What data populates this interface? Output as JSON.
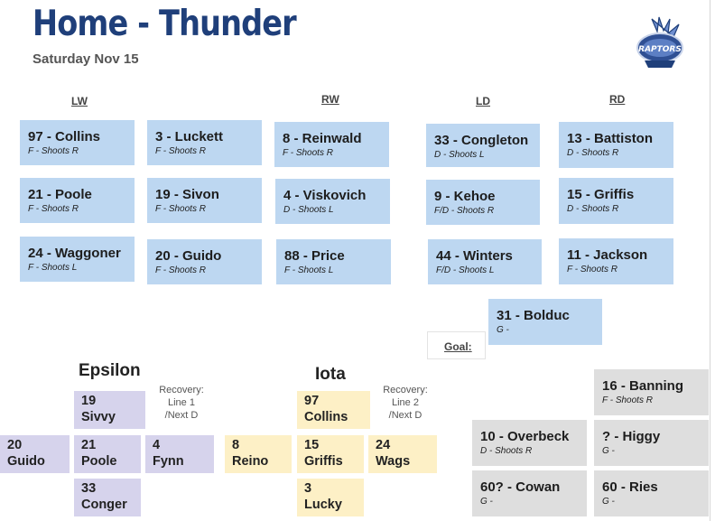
{
  "header": {
    "title": "Home - Thunder",
    "date": "Saturday Nov 15",
    "logo_text": "RAPTORS"
  },
  "columns": {
    "lw": "LW",
    "rw": "RW",
    "ld": "LD",
    "rd": "RD"
  },
  "lines": {
    "lw": [
      {
        "name": "97 - Collins",
        "detail": "F -  Shoots R"
      },
      {
        "name": "21 - Poole",
        "detail": "F - Shoots R"
      },
      {
        "name": "24 - Waggoner",
        "detail": "F - Shoots L"
      }
    ],
    "c": [
      {
        "name": "3 - Luckett",
        "detail": "F -  Shoots R"
      },
      {
        "name": "19 - Sivon",
        "detail": "F -  Shoots R"
      },
      {
        "name": "20 - Guido",
        "detail": "F -  Shoots R"
      }
    ],
    "rw": [
      {
        "name": "8 - Reinwald",
        "detail": "F -  Shoots R"
      },
      {
        "name": "4 - Viskovich",
        "detail": "D -  Shoots L"
      },
      {
        "name": "88 - Price",
        "detail": "F - Shoots L"
      }
    ],
    "ld": [
      {
        "name": "33 - Congleton",
        "detail": "D -  Shoots L"
      },
      {
        "name": "9 - Kehoe",
        "detail": "F/D -  Shoots R"
      },
      {
        "name": "44 - Winters",
        "detail": "F/D -  Shoots L"
      }
    ],
    "rd": [
      {
        "name": "13 - Battiston",
        "detail": "D -  Shoots R"
      },
      {
        "name": "15 - Griffis",
        "detail": "D -  Shoots R"
      },
      {
        "name": "11 - Jackson",
        "detail": "F -  Shoots R"
      }
    ]
  },
  "goal": {
    "label": "Goal:",
    "starter": {
      "name": "31 - Bolduc",
      "detail": "G -"
    }
  },
  "epsilon": {
    "title": "Epsilon",
    "recovery": [
      "Recovery:",
      "Line 1",
      "/Next D"
    ],
    "players": [
      [
        "19",
        "Sivvy"
      ],
      [
        "20",
        "Guido"
      ],
      [
        "21",
        "Poole"
      ],
      [
        "4",
        "Fynn"
      ],
      [
        "33",
        "Conger"
      ]
    ]
  },
  "iota": {
    "title": "Iota",
    "recovery": [
      "Recovery:",
      "Line 2",
      "/Next D"
    ],
    "players": [
      [
        "97",
        "Collins"
      ],
      [
        "8",
        "Reino"
      ],
      [
        "15",
        "Griffis"
      ],
      [
        "24",
        "Wags"
      ],
      [
        "3",
        "Lucky"
      ]
    ]
  },
  "extras": [
    {
      "name": "16 - Banning",
      "detail": "F -  Shoots R"
    },
    {
      "name": "10 - Overbeck",
      "detail": "D -  Shoots R"
    },
    {
      "name": "? - Higgy",
      "detail": "G -"
    },
    {
      "name": "60? - Cowan",
      "detail": "G -"
    },
    {
      "name": "60 - Ries",
      "detail": "G -"
    }
  ]
}
